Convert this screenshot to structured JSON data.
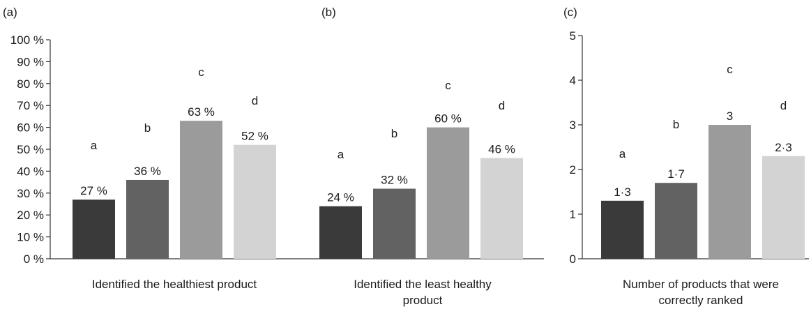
{
  "chart_data": [
    {
      "type": "bar",
      "panel_label": "(a)",
      "categories": [
        "a",
        "b",
        "c",
        "d"
      ],
      "values": [
        27,
        36,
        63,
        52
      ],
      "data_labels": [
        "27 %",
        "36 %",
        "63 %",
        "52 %"
      ],
      "letters": [
        "a",
        "b",
        "c",
        "d"
      ],
      "xlabel": [
        "Identified the healthiest product"
      ],
      "ylim": [
        0,
        100
      ],
      "ytick_values": [
        0,
        10,
        20,
        30,
        40,
        50,
        60,
        70,
        80,
        90,
        100
      ],
      "ytick_labels": [
        "0 %",
        "10 %",
        "20 %",
        "30 %",
        "40 %",
        "50 %",
        "60 %",
        "70 %",
        "80 %",
        "90 %",
        "100 %"
      ],
      "grid": false
    },
    {
      "type": "bar",
      "panel_label": "(b)",
      "categories": [
        "a",
        "b",
        "c",
        "d"
      ],
      "values": [
        24,
        32,
        60,
        46
      ],
      "data_labels": [
        "24 %",
        "32 %",
        "60 %",
        "46 %"
      ],
      "letters": [
        "a",
        "b",
        "c",
        "d"
      ],
      "xlabel": [
        "Identified the least healthy",
        "product"
      ],
      "ylim": [
        0,
        100
      ],
      "grid": false
    },
    {
      "type": "bar",
      "panel_label": "(c)",
      "categories": [
        "a",
        "b",
        "c",
        "d"
      ],
      "values": [
        1.3,
        1.7,
        3,
        2.3
      ],
      "data_labels": [
        "1·3",
        "1·7",
        "3",
        "2·3"
      ],
      "letters": [
        "a",
        "b",
        "c",
        "d"
      ],
      "xlabel": [
        "Number of products that were",
        "correctly ranked"
      ],
      "ylim": [
        0,
        5
      ],
      "ytick_values": [
        0,
        1,
        2,
        3,
        4,
        5
      ],
      "ytick_labels": [
        "0",
        "1",
        "2",
        "3",
        "4",
        "5"
      ],
      "grid": false
    }
  ],
  "colors": {
    "bars": [
      "#3a3a3a",
      "#626262",
      "#9b9b9b",
      "#d3d3d3"
    ],
    "axis": "#333333"
  }
}
